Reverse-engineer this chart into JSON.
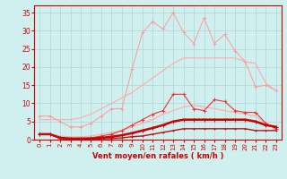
{
  "x": [
    0,
    1,
    2,
    3,
    4,
    5,
    6,
    7,
    8,
    9,
    10,
    11,
    12,
    13,
    14,
    15,
    16,
    17,
    18,
    19,
    20,
    21,
    22,
    23
  ],
  "background_color": "#cff0ee",
  "grid_color": "#aed4d0",
  "xlabel": "Vent moyen/en rafales ( km/h )",
  "xlabel_color": "#cc0000",
  "tick_color": "#cc0000",
  "series": [
    {
      "label": "line1_light_peak",
      "color": "#ff9999",
      "linewidth": 0.7,
      "marker": "+",
      "markersize": 3.0,
      "values": [
        6.5,
        6.5,
        5.0,
        3.5,
        3.5,
        4.5,
        6.5,
        8.5,
        8.5,
        19.5,
        29.5,
        32.5,
        30.5,
        35.0,
        29.5,
        26.5,
        33.5,
        26.5,
        29.0,
        24.5,
        21.5,
        14.5,
        15.0,
        13.5
      ]
    },
    {
      "label": "line2_light_upper_band",
      "color": "#ffaaaa",
      "linewidth": 0.8,
      "marker": null,
      "markersize": 0,
      "values": [
        5.5,
        5.5,
        5.5,
        5.5,
        6.0,
        7.0,
        8.5,
        10.0,
        11.5,
        13.0,
        15.0,
        17.0,
        19.0,
        21.0,
        22.5,
        22.5,
        22.5,
        22.5,
        22.5,
        22.5,
        21.5,
        21.0,
        15.5,
        13.5
      ]
    },
    {
      "label": "line3_light_lower_band",
      "color": "#ffaaaa",
      "linewidth": 0.8,
      "marker": null,
      "markersize": 0,
      "values": [
        1.5,
        1.5,
        1.0,
        0.8,
        0.8,
        1.0,
        1.5,
        2.0,
        2.5,
        3.5,
        4.5,
        5.5,
        7.0,
        8.0,
        9.0,
        9.5,
        9.0,
        8.5,
        8.0,
        7.5,
        7.0,
        6.5,
        4.5,
        3.5
      ]
    },
    {
      "label": "line4_medium_red_peaked",
      "color": "#ee3333",
      "linewidth": 0.8,
      "marker": "+",
      "markersize": 3.0,
      "values": [
        1.5,
        1.5,
        0.5,
        0.2,
        0.3,
        0.5,
        1.0,
        1.5,
        2.5,
        4.0,
        5.5,
        7.0,
        8.0,
        12.5,
        12.5,
        8.5,
        8.0,
        11.0,
        10.5,
        8.0,
        7.5,
        7.5,
        4.5,
        3.0
      ]
    },
    {
      "label": "line5_dark_thick",
      "color": "#cc0000",
      "linewidth": 1.8,
      "marker": "+",
      "markersize": 2.5,
      "values": [
        1.5,
        1.5,
        0.5,
        0.3,
        0.3,
        0.3,
        0.5,
        0.8,
        1.2,
        1.8,
        2.5,
        3.2,
        4.0,
        5.0,
        5.5,
        5.5,
        5.5,
        5.5,
        5.5,
        5.5,
        5.5,
        5.0,
        4.0,
        3.5
      ]
    },
    {
      "label": "line6_darkred_flat",
      "color": "#bb1111",
      "linewidth": 1.0,
      "marker": "+",
      "markersize": 2.0,
      "values": [
        1.5,
        1.5,
        0.3,
        0.1,
        0.1,
        0.1,
        0.2,
        0.3,
        0.5,
        0.8,
        1.0,
        1.5,
        2.0,
        2.5,
        3.0,
        3.0,
        3.0,
        3.0,
        3.0,
        3.0,
        3.0,
        2.5,
        2.5,
        2.5
      ]
    }
  ],
  "ylim": [
    0,
    37
  ],
  "xlim": [
    -0.5,
    23.5
  ],
  "yticks": [
    0,
    5,
    10,
    15,
    20,
    25,
    30,
    35
  ],
  "xticks": [
    0,
    1,
    2,
    3,
    4,
    5,
    6,
    7,
    8,
    9,
    10,
    11,
    12,
    13,
    14,
    15,
    16,
    17,
    18,
    19,
    20,
    21,
    22,
    23
  ],
  "tick_fontsize": 5.0,
  "xlabel_fontsize": 6.0,
  "ytick_fontsize": 5.5
}
